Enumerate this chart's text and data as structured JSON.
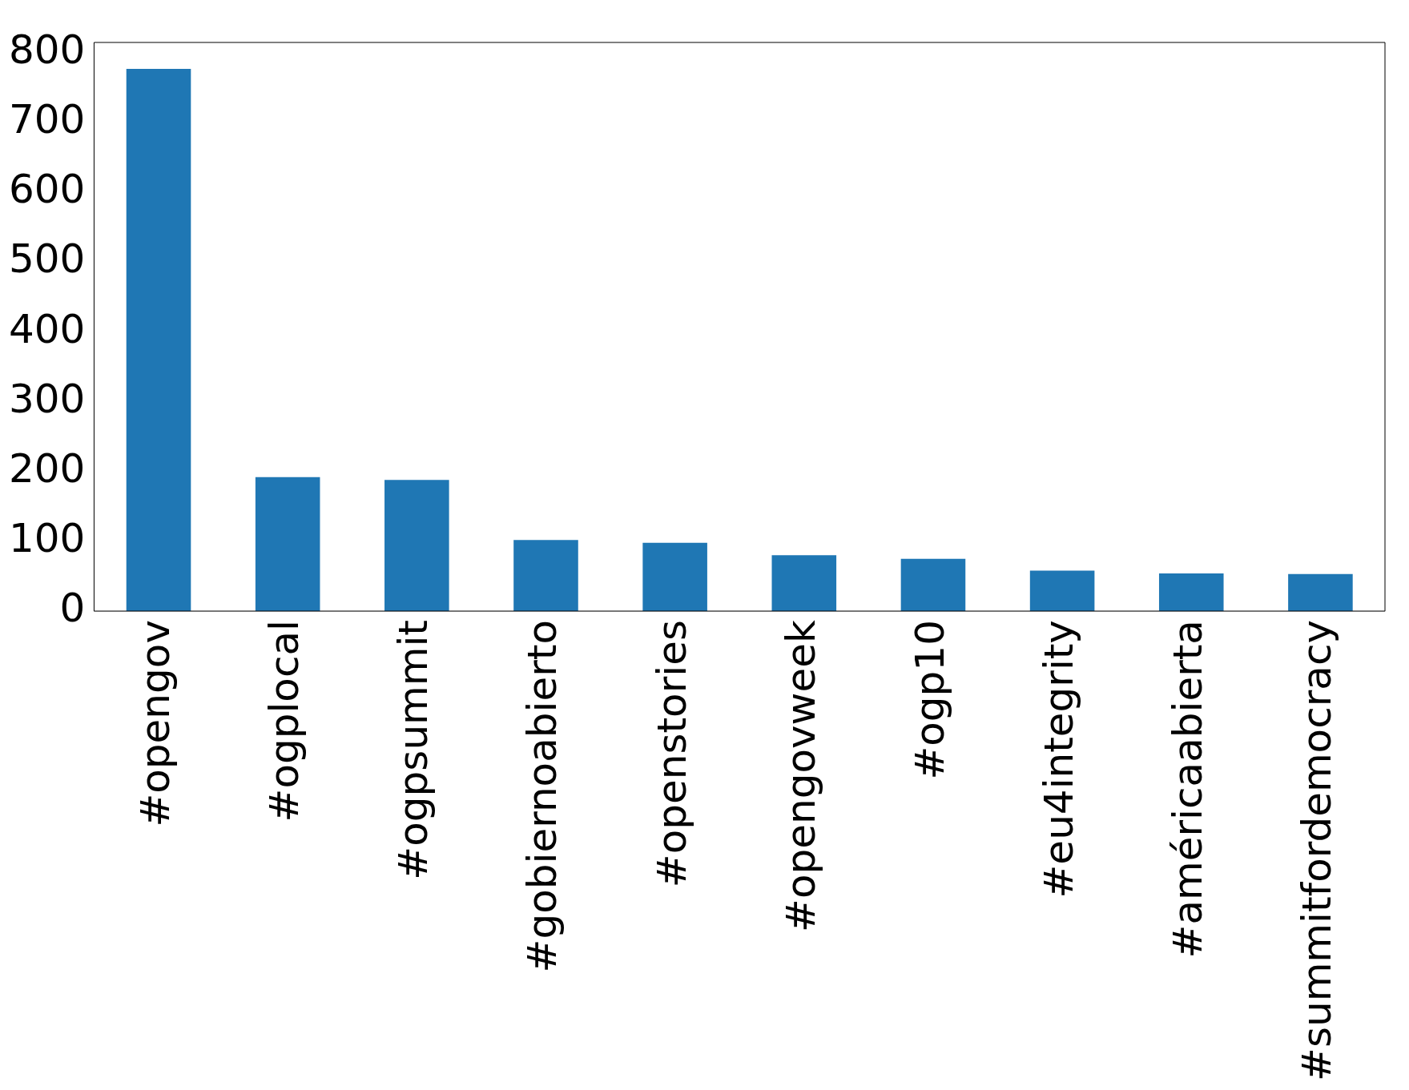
{
  "chart_data": {
    "type": "bar",
    "categories": [
      "#opengov",
      "#ogplocal",
      "#ogpsummit",
      "#gobiernoabierto",
      "#openstories",
      "#opengovweek",
      "#ogp10",
      "#eu4integrity",
      "#américaabierta",
      "#summitfordemocracy"
    ],
    "values": [
      777,
      192,
      188,
      102,
      98,
      80,
      75,
      58,
      54,
      53
    ],
    "color": "#1f77b4",
    "ylim": [
      0,
      815
    ],
    "yticks": [
      0,
      100,
      200,
      300,
      400,
      500,
      600,
      700,
      800
    ],
    "grid": false,
    "legend": false
  }
}
